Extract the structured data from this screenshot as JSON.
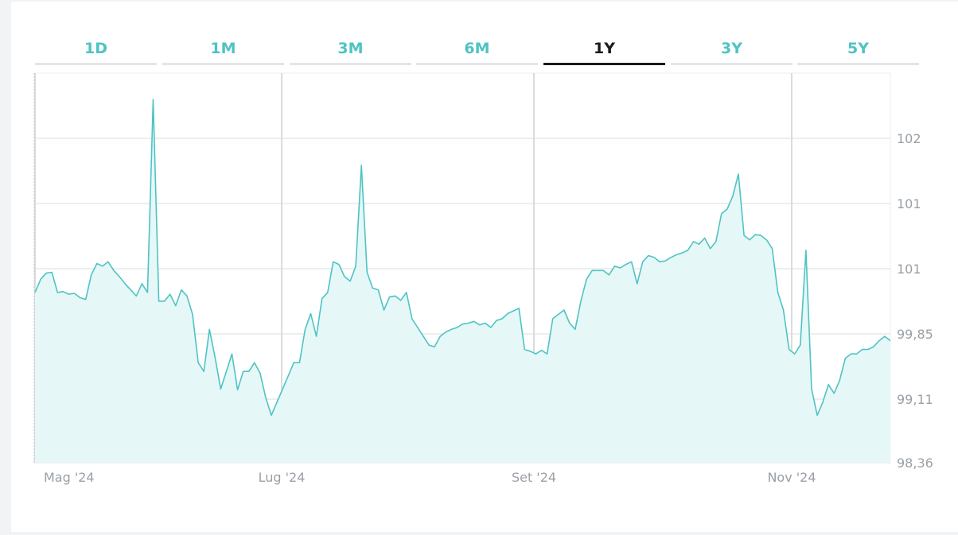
{
  "tabs": [
    {
      "label": "1D",
      "active": false
    },
    {
      "label": "1M",
      "active": false
    },
    {
      "label": "3M",
      "active": false
    },
    {
      "label": "6M",
      "active": false
    },
    {
      "label": "1Y",
      "active": true
    },
    {
      "label": "3Y",
      "active": false
    },
    {
      "label": "5Y",
      "active": false
    }
  ],
  "colors": {
    "accent": "#4fc3c3",
    "fill": "#e6f7f7",
    "grid": "#d9dcdf",
    "active_tab": "#1a1a1a"
  },
  "chart_data": {
    "type": "area",
    "x_ticks": [
      "Mag '24",
      "Lug '24",
      "Set '24",
      "Nov '24"
    ],
    "y_ticks": [
      "98,36",
      "99,11",
      "99,85",
      "101",
      "101",
      "102"
    ],
    "ylim": [
      98.36,
      102.8
    ],
    "grid": true,
    "values": [
      100.3,
      100.45,
      100.52,
      100.53,
      100.3,
      100.31,
      100.28,
      100.29,
      100.24,
      100.22,
      100.5,
      100.63,
      100.6,
      100.65,
      100.55,
      100.48,
      100.4,
      100.33,
      100.26,
      100.4,
      100.3,
      102.5,
      100.2,
      100.2,
      100.28,
      100.15,
      100.33,
      100.26,
      100.05,
      99.5,
      99.4,
      99.88,
      99.56,
      99.2,
      99.4,
      99.6,
      99.19,
      99.4,
      99.4,
      99.5,
      99.38,
      99.1,
      98.9,
      99.05,
      99.2,
      99.35,
      99.5,
      99.5,
      99.88,
      100.06,
      99.8,
      100.23,
      100.3,
      100.65,
      100.62,
      100.48,
      100.43,
      100.6,
      101.75,
      100.53,
      100.35,
      100.33,
      100.1,
      100.25,
      100.26,
      100.21,
      100.3,
      100.0,
      99.9,
      99.8,
      99.7,
      99.68,
      99.8,
      99.85,
      99.88,
      99.9,
      99.94,
      99.95,
      99.97,
      99.93,
      99.95,
      99.9,
      99.98,
      100.0,
      100.06,
      100.09,
      100.12,
      99.65,
      99.63,
      99.6,
      99.64,
      99.6,
      100.0,
      100.05,
      100.1,
      99.95,
      99.88,
      100.2,
      100.45,
      100.55,
      100.55,
      100.55,
      100.5,
      100.6,
      100.58,
      100.62,
      100.65,
      100.4,
      100.65,
      100.72,
      100.7,
      100.65,
      100.66,
      100.7,
      100.73,
      100.75,
      100.78,
      100.88,
      100.85,
      100.92,
      100.8,
      100.88,
      101.2,
      101.25,
      101.4,
      101.65,
      100.95,
      100.9,
      100.96,
      100.95,
      100.9,
      100.8,
      100.3,
      100.1,
      99.65,
      99.6,
      99.7,
      100.78,
      99.2,
      98.9,
      99.05,
      99.25,
      99.15,
      99.3,
      99.55,
      99.6,
      99.6,
      99.65,
      99.65,
      99.68,
      99.75,
      99.8,
      99.75
    ]
  }
}
